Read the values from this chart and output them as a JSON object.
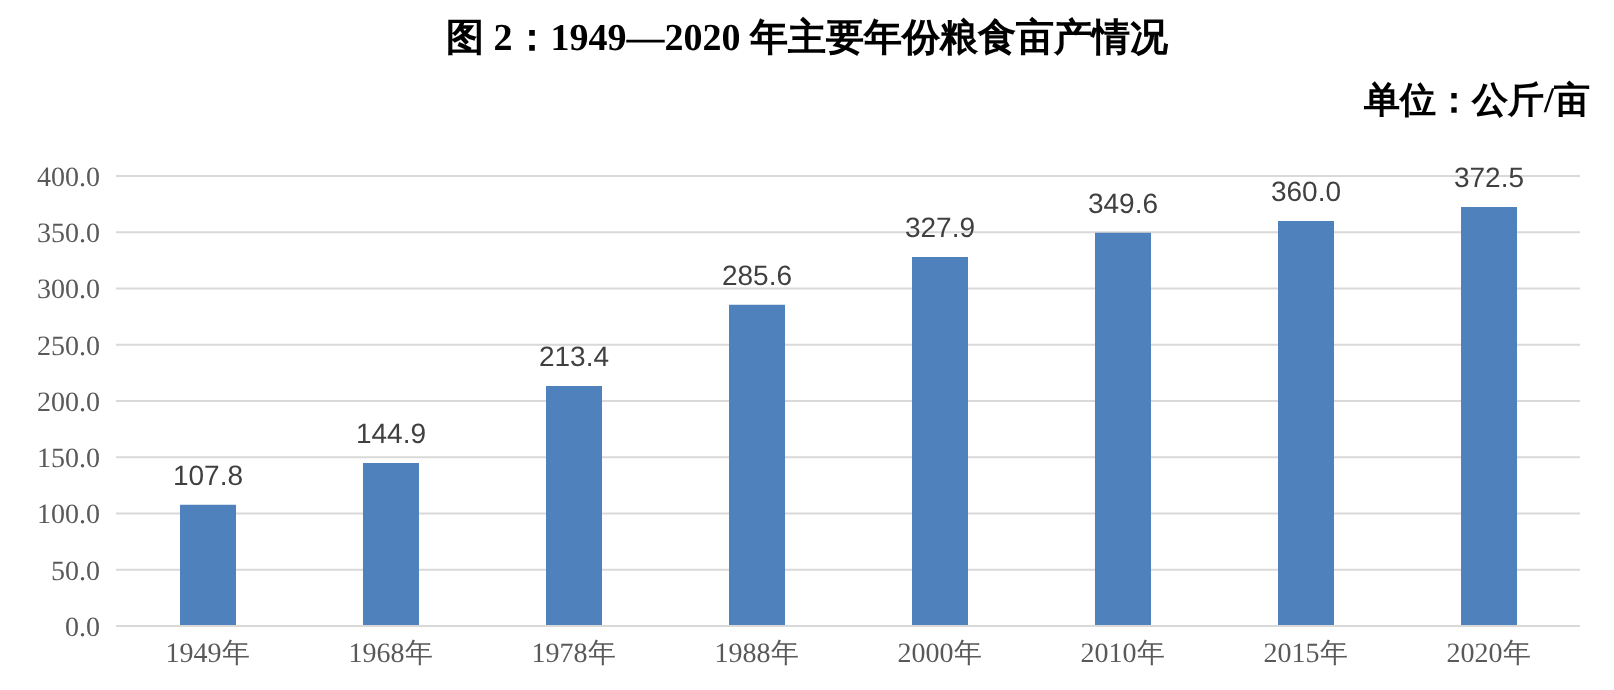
{
  "chart_data": {
    "type": "bar",
    "title": "图 2：1949—2020 年主要年份粮食亩产情况",
    "ylabel": "单位：公斤/亩",
    "categories": [
      "1949年",
      "1968年",
      "1978年",
      "1988年",
      "2000年",
      "2010年",
      "2015年",
      "2020年"
    ],
    "values": [
      107.8,
      144.9,
      213.4,
      285.6,
      327.9,
      349.6,
      360.0,
      372.5
    ],
    "value_labels": [
      "107.8",
      "144.9",
      "213.4",
      "285.6",
      "327.9",
      "349.6",
      "360.0",
      "372.5"
    ],
    "color": "#4f81bd",
    "ylim": [
      0,
      400
    ],
    "yticks": [
      {
        "value": 0,
        "label": "0.0"
      },
      {
        "value": 50,
        "label": "50.0"
      },
      {
        "value": 100,
        "label": "100.0"
      },
      {
        "value": 150,
        "label": "150.0"
      },
      {
        "value": 200,
        "label": "200.0"
      },
      {
        "value": 250,
        "label": "250.0"
      },
      {
        "value": 300,
        "label": "300.0"
      },
      {
        "value": 350,
        "label": "350.0"
      },
      {
        "value": 400,
        "label": "400.0"
      }
    ],
    "grid": "y"
  }
}
